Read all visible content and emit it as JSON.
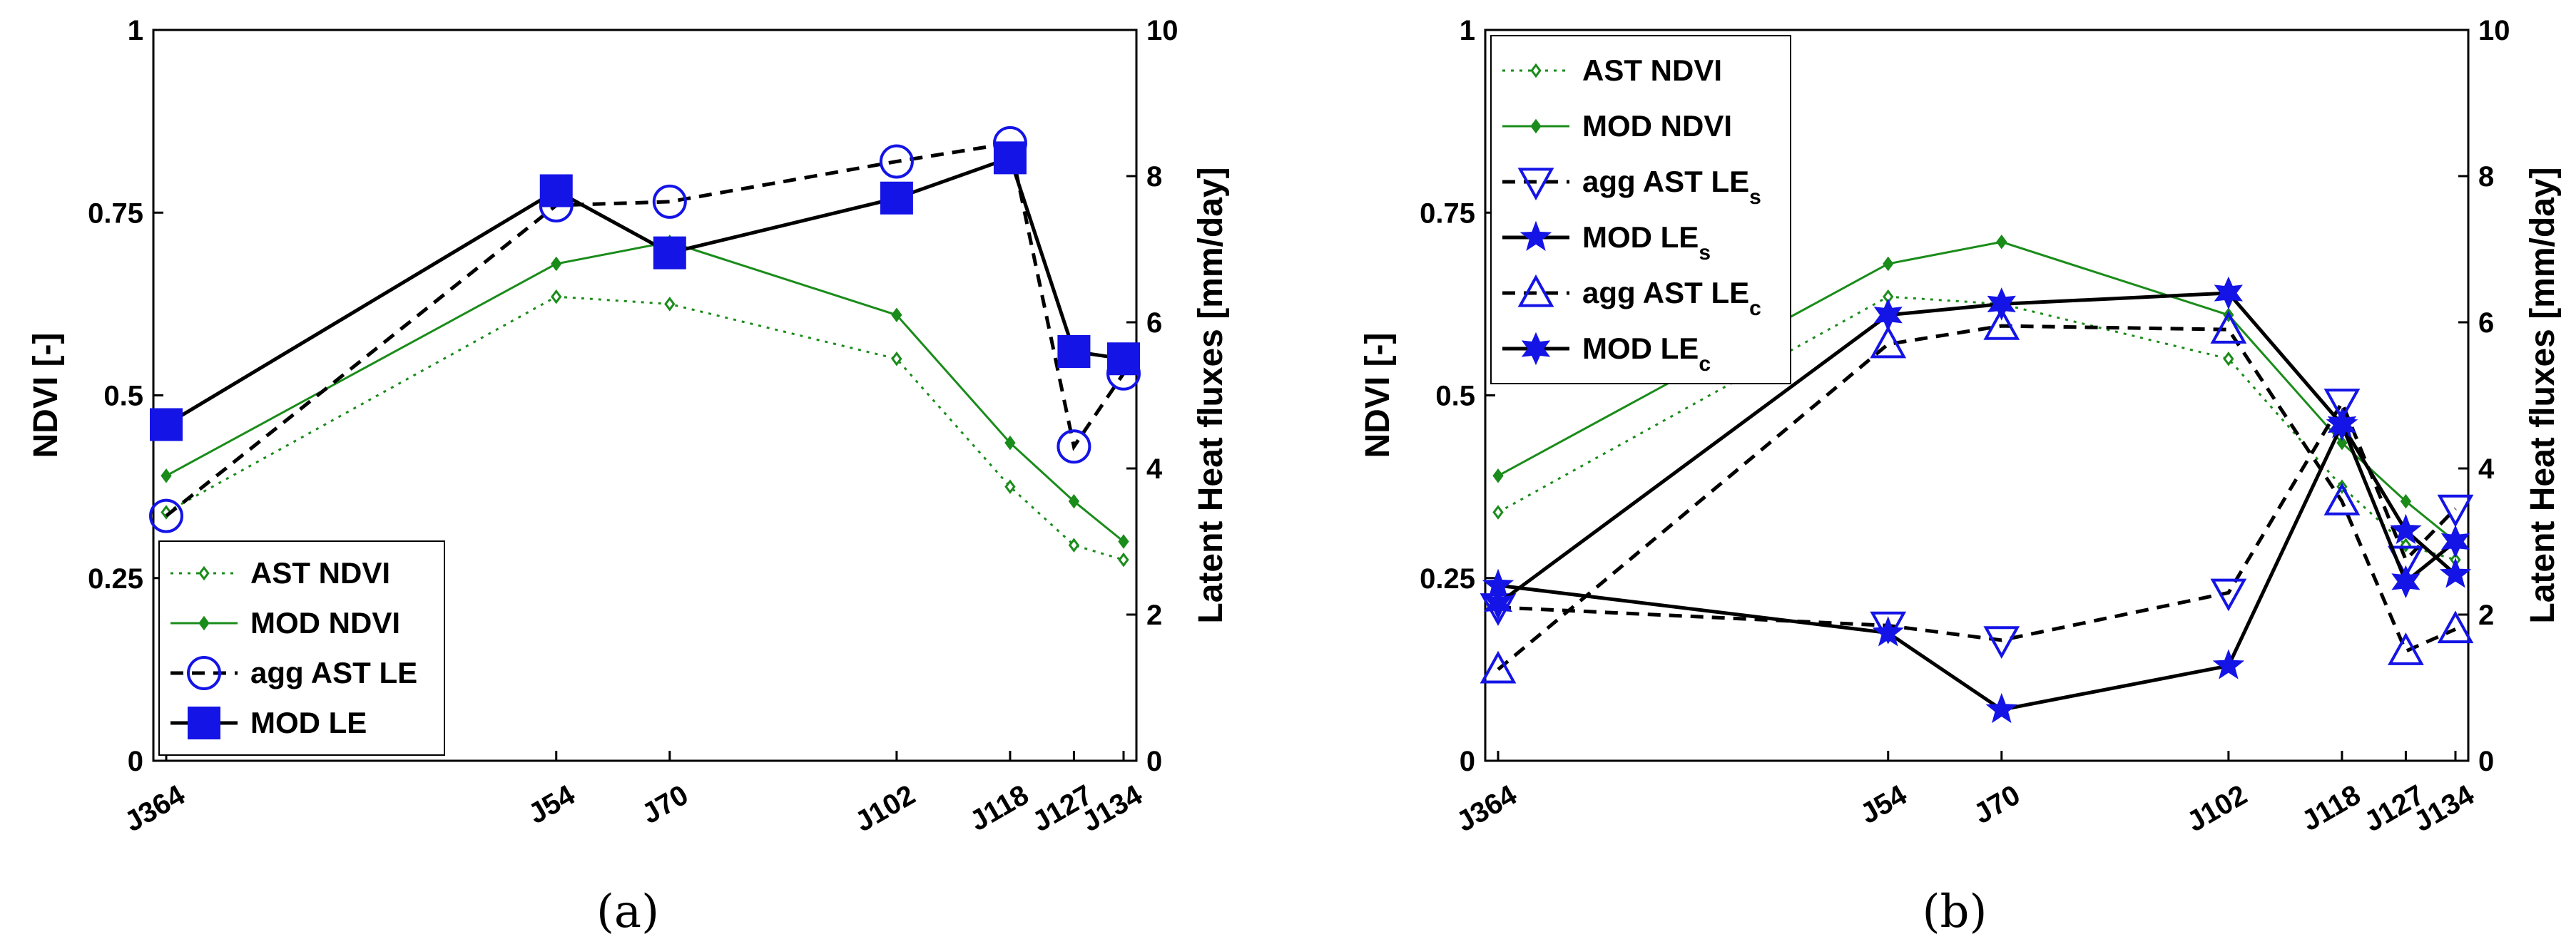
{
  "chart_data": [
    {
      "id": "a",
      "type": "line",
      "caption": "(a)",
      "ylabel": "NDVI [-]",
      "y2label": "Latent Heat fluxes [mm/day]",
      "ylim": [
        0,
        1
      ],
      "y2lim": [
        0,
        10
      ],
      "yticks": [
        "0",
        "0.25",
        "0.5",
        "0.75",
        "1"
      ],
      "y2ticks": [
        "0",
        "2",
        "4",
        "6",
        "8",
        "10"
      ],
      "x": [
        364,
        54,
        70,
        102,
        118,
        127,
        134
      ],
      "xticklabels": [
        "J364",
        "J54",
        "J70",
        "J102",
        "J118",
        "J127",
        "J134"
      ],
      "legend_position": "bottom-left",
      "series": [
        {
          "name": "AST NDVI",
          "axis": "left",
          "color": "#1a8c1a",
          "style": "dotted",
          "marker": "diamond-open",
          "values": [
            0.34,
            0.635,
            0.625,
            0.55,
            0.375,
            0.295,
            0.275
          ]
        },
        {
          "name": "MOD NDVI",
          "axis": "left",
          "color": "#1a8c1a",
          "style": "solid",
          "marker": "diamond-filled",
          "values": [
            0.39,
            0.68,
            0.71,
            0.61,
            0.435,
            0.355,
            0.3
          ]
        },
        {
          "name": "agg AST LE",
          "axis": "right",
          "color": "#000000",
          "markerColor": "#1414e6",
          "style": "dashed",
          "marker": "circle-open",
          "values": [
            3.35,
            7.6,
            7.65,
            8.2,
            8.45,
            4.3,
            5.3
          ]
        },
        {
          "name": "MOD LE",
          "axis": "right",
          "color": "#000000",
          "markerColor": "#1414e6",
          "style": "solid",
          "marker": "square-filled",
          "values": [
            4.6,
            7.8,
            6.95,
            7.7,
            8.25,
            5.6,
            5.5
          ]
        }
      ]
    },
    {
      "id": "b",
      "type": "line",
      "caption": "(b)",
      "ylabel": "NDVI [-]",
      "y2label": "Latent Heat fluxes [mm/day]",
      "ylim": [
        0,
        1
      ],
      "y2lim": [
        0,
        10
      ],
      "yticks": [
        "0",
        "0.25",
        "0.5",
        "0.75",
        "1"
      ],
      "y2ticks": [
        "0",
        "2",
        "4",
        "6",
        "8",
        "10"
      ],
      "x": [
        364,
        54,
        70,
        102,
        118,
        127,
        134
      ],
      "xticklabels": [
        "J364",
        "J54",
        "J70",
        "J102",
        "J118",
        "J127",
        "J134"
      ],
      "legend_position": "top-left",
      "series": [
        {
          "name": "AST NDVI",
          "axis": "left",
          "color": "#1a8c1a",
          "style": "dotted",
          "marker": "diamond-open",
          "values": [
            0.34,
            0.635,
            0.625,
            0.55,
            0.375,
            0.295,
            0.275
          ]
        },
        {
          "name": "MOD NDVI",
          "axis": "left",
          "color": "#1a8c1a",
          "style": "solid",
          "marker": "diamond-filled",
          "values": [
            0.39,
            0.68,
            0.71,
            0.61,
            0.435,
            0.355,
            0.3
          ]
        },
        {
          "name": "agg AST LE",
          "sub": "s",
          "axis": "right",
          "color": "#000000",
          "markerColor": "#1414e6",
          "style": "dashed",
          "marker": "triangle-down-open",
          "values": [
            2.1,
            1.85,
            1.65,
            2.3,
            4.9,
            2.75,
            3.45
          ]
        },
        {
          "name": "MOD LE",
          "sub": "s",
          "axis": "right",
          "color": "#000000",
          "markerColor": "#1414e6",
          "style": "solid",
          "marker": "star5",
          "values": [
            2.4,
            1.75,
            0.7,
            1.3,
            4.6,
            3.15,
            2.55
          ]
        },
        {
          "name": "agg AST LE",
          "sub": "c",
          "axis": "right",
          "color": "#000000",
          "markerColor": "#1414e6",
          "style": "dashed",
          "marker": "triangle-up-open",
          "values": [
            1.25,
            5.7,
            5.95,
            5.9,
            3.55,
            1.5,
            1.8
          ]
        },
        {
          "name": "MOD LE",
          "sub": "c",
          "axis": "right",
          "color": "#000000",
          "markerColor": "#1414e6",
          "style": "solid",
          "marker": "star6",
          "values": [
            2.15,
            6.1,
            6.25,
            6.4,
            4.6,
            2.45,
            3.0
          ]
        }
      ]
    }
  ]
}
